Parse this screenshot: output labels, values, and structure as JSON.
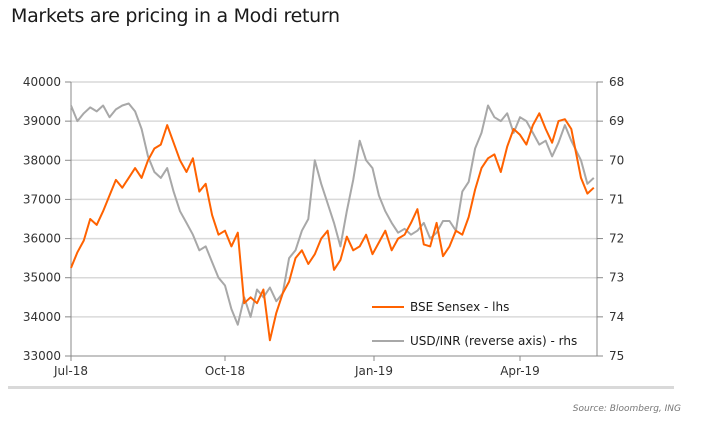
{
  "title": "Markets are pricing in a Modi return",
  "source": "Source: Bloomberg, ING",
  "colors": {
    "sensex": "#ff6200",
    "usdinr": "#a8a8a8",
    "grid": "#d9d9d9",
    "axis": "#888888"
  },
  "chart_data": {
    "type": "line",
    "title": "Markets are pricing in a Modi return",
    "xlabel": "",
    "ylabel_left": "",
    "ylabel_right": "",
    "x_ticks": [
      "Jul-18",
      "Oct-18",
      "Jan-19",
      "Apr-19"
    ],
    "x_range": [
      "2018-07-01",
      "2019-05-24"
    ],
    "x_tick_positions": [
      0,
      92,
      184,
      274
    ],
    "y_left": {
      "min": 33000,
      "max": 40000,
      "ticks": [
        33000,
        34000,
        35000,
        36000,
        37000,
        38000,
        39000,
        40000
      ]
    },
    "y_right": {
      "min": 68,
      "max": 75,
      "reversed": true,
      "ticks": [
        68,
        69,
        70,
        71,
        72,
        73,
        74,
        75
      ]
    },
    "grid": true,
    "legend_position": "bottom-right",
    "series": [
      {
        "name": "BSE Sensex - lhs",
        "axis": "left",
        "color_key": "sensex",
        "x_days": [
          0,
          4,
          8,
          12,
          16,
          20,
          24,
          28,
          32,
          36,
          40,
          44,
          48,
          52,
          56,
          60,
          64,
          68,
          72,
          76,
          80,
          84,
          88,
          92,
          96,
          100,
          104,
          108,
          112,
          116,
          120,
          124,
          128,
          132,
          136,
          140,
          144,
          148,
          152,
          156,
          160,
          164,
          168,
          172,
          176,
          180,
          184,
          188,
          192,
          196,
          200,
          204,
          208,
          212,
          216,
          220,
          224,
          228,
          232,
          236,
          240,
          244,
          248,
          252,
          256,
          260,
          264,
          268,
          272,
          276,
          280,
          284,
          288,
          292,
          296,
          300,
          304,
          308,
          312,
          318,
          322,
          326
        ],
        "values": [
          35250,
          35650,
          35950,
          36500,
          36350,
          36700,
          37100,
          37500,
          37300,
          37550,
          37800,
          37550,
          38000,
          38300,
          38400,
          38900,
          38450,
          38000,
          37700,
          38050,
          37200,
          37400,
          36600,
          36100,
          36200,
          35800,
          36150,
          34350,
          34500,
          34350,
          34700,
          33400,
          34100,
          34600,
          34900,
          35500,
          35700,
          35350,
          35600,
          36000,
          36200,
          35200,
          35450,
          36050,
          35700,
          35800,
          36100,
          35600,
          35900,
          36200,
          35700,
          36000,
          36100,
          36400,
          36750,
          35850,
          35800,
          36400,
          35550,
          35800,
          36200,
          36100,
          36550,
          37250,
          37800,
          38050,
          38150,
          37700,
          38350,
          38800,
          38650,
          38400,
          38900,
          39200,
          38800,
          38450,
          39000,
          39050,
          38800,
          37550,
          37150,
          37300
        ]
      },
      {
        "name": "USD/INR (reverse axis) - rhs",
        "axis": "right",
        "color_key": "usdinr",
        "x_days": [
          0,
          4,
          8,
          12,
          16,
          20,
          24,
          28,
          32,
          36,
          40,
          44,
          48,
          52,
          56,
          60,
          64,
          68,
          72,
          76,
          80,
          84,
          88,
          92,
          96,
          100,
          104,
          108,
          112,
          116,
          120,
          124,
          128,
          132,
          136,
          140,
          144,
          148,
          152,
          156,
          160,
          164,
          168,
          172,
          176,
          180,
          184,
          188,
          192,
          196,
          200,
          204,
          208,
          212,
          216,
          220,
          224,
          228,
          232,
          236,
          240,
          244,
          248,
          252,
          256,
          260,
          264,
          268,
          272,
          276,
          280,
          284,
          288,
          292,
          296,
          300,
          304,
          308,
          312,
          318,
          322,
          326
        ],
        "values": [
          68.6,
          69.0,
          68.8,
          68.65,
          68.75,
          68.6,
          68.9,
          68.7,
          68.6,
          68.55,
          68.75,
          69.2,
          69.9,
          70.3,
          70.45,
          70.2,
          70.8,
          71.3,
          71.6,
          71.9,
          72.3,
          72.2,
          72.6,
          73.0,
          73.2,
          73.8,
          74.2,
          73.5,
          74.0,
          73.3,
          73.5,
          73.25,
          73.6,
          73.4,
          72.5,
          72.3,
          71.8,
          71.5,
          70.0,
          70.6,
          71.1,
          71.6,
          72.2,
          71.3,
          70.5,
          69.5,
          70.0,
          70.2,
          70.9,
          71.3,
          71.6,
          71.85,
          71.75,
          71.9,
          71.8,
          71.6,
          72.0,
          71.85,
          71.55,
          71.55,
          71.8,
          70.8,
          70.55,
          69.7,
          69.3,
          68.6,
          68.9,
          69.0,
          68.8,
          69.3,
          68.9,
          69.0,
          69.3,
          69.6,
          69.5,
          69.9,
          69.55,
          69.1,
          69.5,
          70.0,
          70.6,
          70.45
        ]
      }
    ]
  }
}
